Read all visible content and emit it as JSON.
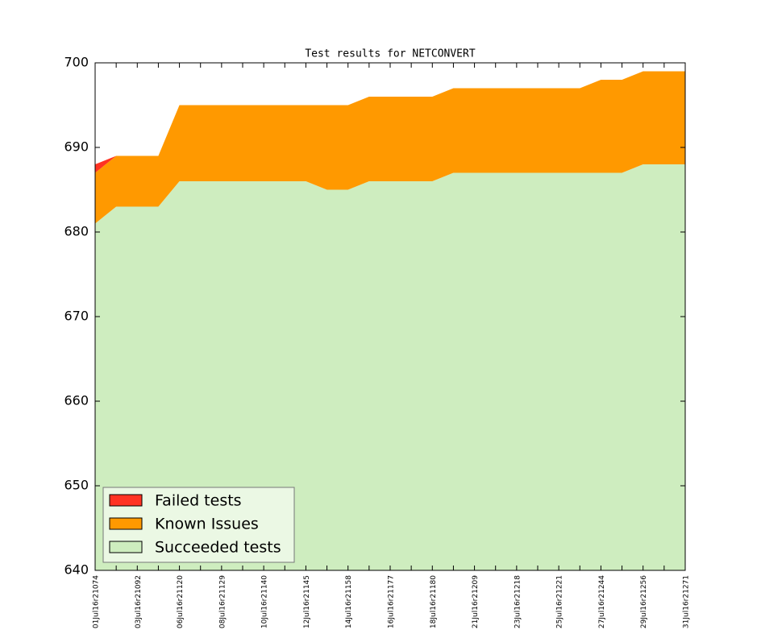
{
  "chart_data": {
    "type": "stacked-area",
    "title": "Test results for NETCONVERT",
    "categories": [
      "01Jul16r21074",
      null,
      "03Jul16r21092",
      null,
      "06Jul16r21120",
      null,
      "08Jul16r21129",
      null,
      "10Jul16r21140",
      null,
      "12Jul16r21145",
      null,
      "14Jul16r21158",
      null,
      "16Jul16r21177",
      null,
      "18Jul16r21180",
      null,
      "21Jul16r21209",
      null,
      "23Jul16r21218",
      null,
      "25Jul16r21221",
      null,
      "27Jul16r21244",
      null,
      "29Jul16r21256",
      null,
      "31Jul16r21271"
    ],
    "series": [
      {
        "name": "Failed tests",
        "color": "#ff3322",
        "values": [
          1,
          0,
          0,
          0,
          0,
          0,
          0,
          0,
          0,
          0,
          0,
          0,
          0,
          0,
          0,
          0,
          0,
          0,
          0,
          0,
          0,
          0,
          0,
          0,
          0,
          0,
          0,
          0,
          0
        ]
      },
      {
        "name": "Known Issues",
        "color": "#ff9900",
        "values": [
          6,
          6,
          6,
          6,
          9,
          9,
          9,
          9,
          9,
          9,
          9,
          10,
          10,
          10,
          10,
          10,
          10,
          10,
          10,
          10,
          10,
          10,
          10,
          10,
          11,
          11,
          11,
          11,
          11
        ]
      },
      {
        "name": "Succeeded tests",
        "color": "#ceedbf",
        "values": [
          681,
          683,
          683,
          683,
          686,
          686,
          686,
          686,
          686,
          686,
          686,
          685,
          685,
          686,
          686,
          686,
          686,
          687,
          687,
          687,
          687,
          687,
          687,
          687,
          687,
          687,
          688,
          688,
          688
        ]
      }
    ],
    "ylim": [
      640,
      700
    ],
    "yticks": [
      640,
      650,
      660,
      670,
      680,
      690,
      700
    ],
    "legend": "lower left"
  }
}
